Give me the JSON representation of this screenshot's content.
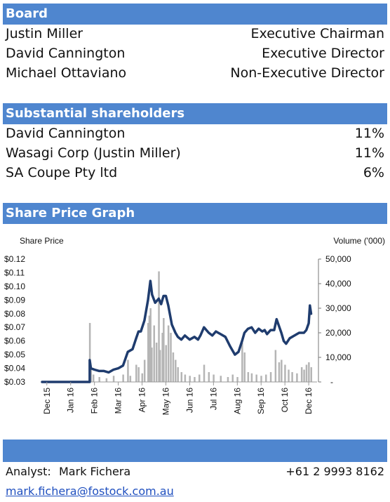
{
  "board": {
    "title": "Board",
    "members": [
      {
        "name": "Justin Miller",
        "role": "Executive Chairman"
      },
      {
        "name": "David Cannington",
        "role": "Executive Director"
      },
      {
        "name": "Michael Ottaviano",
        "role": "Non-Executive Director"
      }
    ]
  },
  "shareholders": {
    "title": "Substantial shareholders",
    "items": [
      {
        "name": "David Cannington",
        "pct": "11%"
      },
      {
        "name": "Wasagi Corp (Justin Miller)",
        "pct": "11%"
      },
      {
        "name": "SA Coupe Pty ltd",
        "pct": "6%"
      }
    ]
  },
  "graph": {
    "title": "Share Price Graph"
  },
  "footer": {
    "analyst_label": "Analyst:",
    "analyst_name": "Mark Fichera",
    "phone": "+61 2 9993 8162",
    "email": "mark.fichera@fostock.com.au"
  },
  "colors": {
    "header": "#4f86cf",
    "price_line": "#1f3c6e",
    "volume_bars": "#b5b5b5"
  },
  "chart_data": {
    "type": "line",
    "ylabel": "Share Price",
    "y2label": "Volume ('000)",
    "ylim": [
      0.03,
      0.12
    ],
    "y_ticks": [
      "$0.12",
      "$0.11",
      "$0.10",
      "$0.09",
      "$0.08",
      "$0.07",
      "$0.06",
      "$0.05",
      "$0.04",
      "$0.03"
    ],
    "y2lim": [
      0,
      50000
    ],
    "y2_ticks": [
      "50,000",
      "40,000",
      "30,000",
      "20,000",
      "10,000",
      "-"
    ],
    "x_ticks": [
      "Dec 15",
      "Jan 16",
      "Feb 16",
      "Mar 16",
      "Apr 16",
      "May 16",
      "Jun 16",
      "Jul 16",
      "Aug 16",
      "Sep 16",
      "Oct 16",
      "Dec 16"
    ],
    "series": [
      {
        "values": [
          [
            2.0,
            0.046
          ],
          [
            2.05,
            0.04
          ],
          [
            2.2,
            0.039
          ],
          [
            2.4,
            0.038
          ],
          [
            2.6,
            0.038
          ],
          [
            2.8,
            0.037
          ],
          [
            3.0,
            0.039
          ],
          [
            3.2,
            0.04
          ],
          [
            3.4,
            0.042
          ],
          [
            3.6,
            0.052
          ],
          [
            3.8,
            0.054
          ],
          [
            3.95,
            0.062
          ],
          [
            4.05,
            0.067
          ],
          [
            4.15,
            0.067
          ],
          [
            4.3,
            0.075
          ],
          [
            4.45,
            0.09
          ],
          [
            4.55,
            0.104
          ],
          [
            4.62,
            0.094
          ],
          [
            4.75,
            0.088
          ],
          [
            4.9,
            0.091
          ],
          [
            5.0,
            0.087
          ],
          [
            5.1,
            0.093
          ],
          [
            5.2,
            0.093
          ],
          [
            5.3,
            0.086
          ],
          [
            5.45,
            0.072
          ],
          [
            5.6,
            0.066
          ],
          [
            5.7,
            0.063
          ],
          [
            5.85,
            0.061
          ],
          [
            6.0,
            0.064
          ],
          [
            6.2,
            0.061
          ],
          [
            6.4,
            0.063
          ],
          [
            6.55,
            0.061
          ],
          [
            6.65,
            0.064
          ],
          [
            6.8,
            0.07
          ],
          [
            6.9,
            0.068
          ],
          [
            7.0,
            0.066
          ],
          [
            7.15,
            0.064
          ],
          [
            7.3,
            0.067
          ],
          [
            7.5,
            0.065
          ],
          [
            7.7,
            0.063
          ],
          [
            7.9,
            0.056
          ],
          [
            8.0,
            0.053
          ],
          [
            8.1,
            0.05
          ],
          [
            8.25,
            0.052
          ],
          [
            8.4,
            0.06
          ],
          [
            8.5,
            0.066
          ],
          [
            8.65,
            0.069
          ],
          [
            8.8,
            0.07
          ],
          [
            8.95,
            0.066
          ],
          [
            9.1,
            0.069
          ],
          [
            9.25,
            0.067
          ],
          [
            9.35,
            0.068
          ],
          [
            9.45,
            0.065
          ],
          [
            9.6,
            0.068
          ],
          [
            9.75,
            0.068
          ],
          [
            9.85,
            0.076
          ],
          [
            9.95,
            0.071
          ],
          [
            10.05,
            0.066
          ],
          [
            10.15,
            0.06
          ],
          [
            10.25,
            0.058
          ],
          [
            10.4,
            0.062
          ],
          [
            10.6,
            0.064
          ],
          [
            10.8,
            0.066
          ],
          [
            11.0,
            0.066
          ],
          [
            11.1,
            0.068
          ],
          [
            11.2,
            0.073
          ],
          [
            11.25,
            0.086
          ],
          [
            11.3,
            0.08
          ]
        ]
      }
    ],
    "volume": [
      [
        2.0,
        24000
      ],
      [
        2.05,
        6000
      ],
      [
        2.15,
        3000
      ],
      [
        2.4,
        2000
      ],
      [
        2.7,
        1500
      ],
      [
        3.0,
        2500
      ],
      [
        3.4,
        3000
      ],
      [
        3.6,
        9000
      ],
      [
        3.7,
        2500
      ],
      [
        3.95,
        7000
      ],
      [
        4.05,
        6000
      ],
      [
        4.2,
        3500
      ],
      [
        4.3,
        9000
      ],
      [
        4.45,
        24000
      ],
      [
        4.5,
        27000
      ],
      [
        4.55,
        30000
      ],
      [
        4.6,
        14000
      ],
      [
        4.7,
        23000
      ],
      [
        4.8,
        16000
      ],
      [
        4.9,
        45000
      ],
      [
        4.95,
        13000
      ],
      [
        5.05,
        20000
      ],
      [
        5.1,
        26000
      ],
      [
        5.2,
        15000
      ],
      [
        5.3,
        23000
      ],
      [
        5.4,
        20000
      ],
      [
        5.5,
        12000
      ],
      [
        5.6,
        9000
      ],
      [
        5.7,
        6000
      ],
      [
        5.85,
        4000
      ],
      [
        6.0,
        3000
      ],
      [
        6.2,
        2500
      ],
      [
        6.4,
        2000
      ],
      [
        6.6,
        3000
      ],
      [
        6.8,
        7000
      ],
      [
        7.0,
        4000
      ],
      [
        7.2,
        3000
      ],
      [
        7.5,
        2500
      ],
      [
        7.8,
        2000
      ],
      [
        8.0,
        3000
      ],
      [
        8.2,
        2000
      ],
      [
        8.4,
        16000
      ],
      [
        8.5,
        12000
      ],
      [
        8.65,
        4000
      ],
      [
        8.8,
        3500
      ],
      [
        9.0,
        3000
      ],
      [
        9.2,
        2500
      ],
      [
        9.4,
        3000
      ],
      [
        9.6,
        4000
      ],
      [
        9.8,
        13000
      ],
      [
        9.95,
        8000
      ],
      [
        10.05,
        9000
      ],
      [
        10.2,
        7000
      ],
      [
        10.35,
        5000
      ],
      [
        10.5,
        4000
      ],
      [
        10.7,
        3500
      ],
      [
        10.9,
        6000
      ],
      [
        11.0,
        5000
      ],
      [
        11.1,
        7000
      ],
      [
        11.2,
        8000
      ],
      [
        11.3,
        6000
      ]
    ]
  }
}
